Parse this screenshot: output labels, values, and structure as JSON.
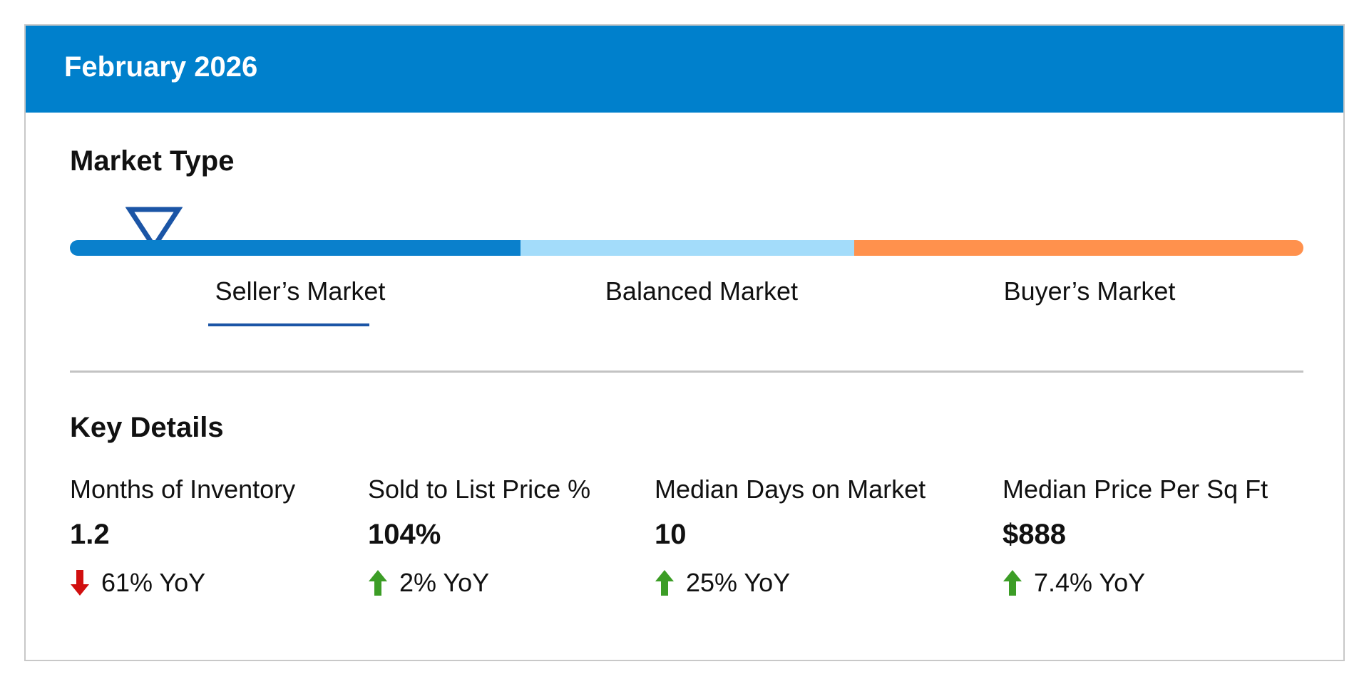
{
  "header": {
    "title": "February 2026"
  },
  "market_type": {
    "title": "Market Type",
    "segments": [
      {
        "label": "Seller’s Market",
        "color": "#0a80cc"
      },
      {
        "label": "Balanced Market",
        "color": "#a3dcfa"
      },
      {
        "label": "Buyer’s Market",
        "color": "#ff914d"
      }
    ],
    "active_segment": "Seller’s Market",
    "indicator_color": "#1b55a6"
  },
  "key_details": {
    "title": "Key Details",
    "metrics": [
      {
        "label": "Months of Inventory",
        "value": "1.2",
        "change": "61% YoY",
        "direction": "down",
        "arrow_icon": "arrow-down-icon",
        "arrow_color": "#d10f0f"
      },
      {
        "label": "Sold to List Price %",
        "value": "104%",
        "change": "2% YoY",
        "direction": "up",
        "arrow_icon": "arrow-up-icon",
        "arrow_color": "#3c9d26"
      },
      {
        "label": "Median Days on Market",
        "value": "10",
        "change": "25% YoY",
        "direction": "up",
        "arrow_icon": "arrow-up-icon",
        "arrow_color": "#3c9d26"
      },
      {
        "label": "Median Price Per Sq Ft",
        "value": "$888",
        "change": "7.4% YoY",
        "direction": "up",
        "arrow_icon": "arrow-up-icon",
        "arrow_color": "#3c9d26"
      }
    ]
  },
  "colors": {
    "header_bg": "#0080cc",
    "divider": "#c3c3c3"
  }
}
